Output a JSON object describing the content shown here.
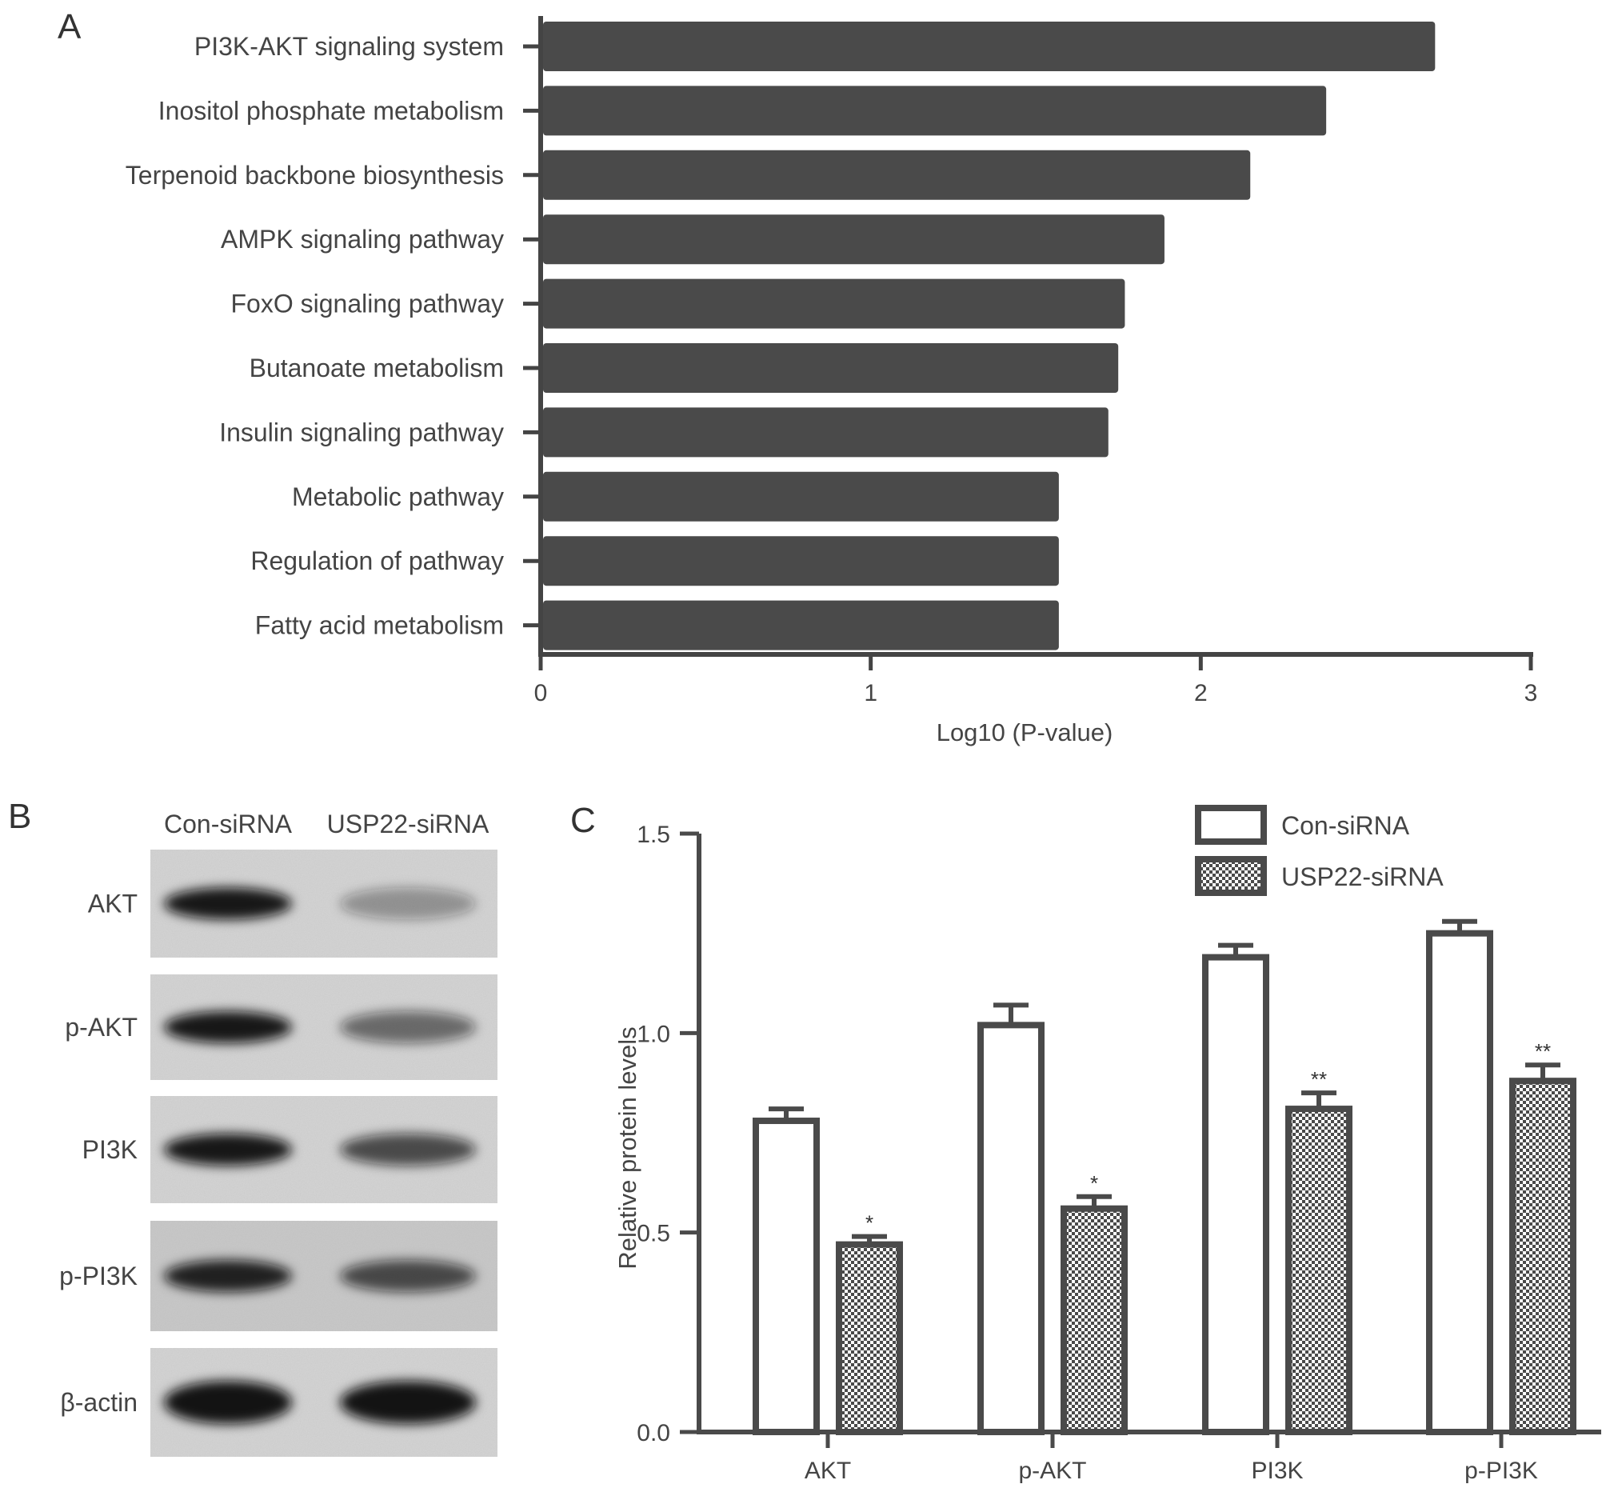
{
  "panels": {
    "a": "A",
    "b": "B",
    "c": "C"
  },
  "chart_data": [
    {
      "type": "bar",
      "orientation": "horizontal",
      "categories": [
        "PI3K-AKT signaling system",
        "Inositol phosphate metabolism",
        "Terpenoid backbone biosynthesis",
        "AMPK signaling pathway",
        "FoxO signaling pathway",
        "Butanoate metabolism",
        "Insulin signaling pathway",
        "Metabolic pathway",
        "Regulation of pathway",
        "Fatty acid metabolism"
      ],
      "values": [
        2.71,
        2.38,
        2.15,
        1.89,
        1.77,
        1.75,
        1.72,
        1.57,
        1.57,
        1.57
      ],
      "xlabel": "Log10 (P-value)",
      "ylabel": "",
      "xlim": [
        0,
        3
      ],
      "xticks": [
        "0",
        "1",
        "2",
        "3"
      ],
      "colors": {
        "bar": "#4a4a4a",
        "axis": "#444444"
      },
      "grid": false
    },
    {
      "type": "bar",
      "categories": [
        "AKT",
        "p-AKT",
        "PI3K",
        "p-PI3K"
      ],
      "series": [
        {
          "name": "Con-siRNA",
          "values": [
            0.78,
            1.02,
            1.19,
            1.25
          ],
          "errors": [
            0.03,
            0.05,
            0.03,
            0.03
          ],
          "fill": "white"
        },
        {
          "name": "USP22-siRNA",
          "values": [
            0.47,
            0.56,
            0.81,
            0.88
          ],
          "errors": [
            0.02,
            0.03,
            0.04,
            0.04
          ],
          "fill": "checkered"
        }
      ],
      "significance": [
        "*",
        "*",
        "**",
        "**"
      ],
      "ylabel": "Relative protein levels",
      "xlabel": "",
      "ylim": [
        0,
        1.5
      ],
      "yticks": [
        "0.0",
        "0.5",
        "1.0",
        "1.5"
      ],
      "legend": "top-right",
      "colors": {
        "outline": "#4a4a4a",
        "fill": "#ffffff"
      },
      "grid": false
    }
  ],
  "blot": {
    "lanes": [
      "Con-siRNA",
      "USP22-siRNA"
    ],
    "proteins": [
      "AKT",
      "p-AKT",
      "PI3K",
      "p-PI3K",
      "β-actin"
    ],
    "band_intensity": [
      [
        0.95,
        0.35
      ],
      [
        0.95,
        0.55
      ],
      [
        0.95,
        0.7
      ],
      [
        0.9,
        0.7
      ],
      [
        0.97,
        0.97
      ]
    ]
  }
}
